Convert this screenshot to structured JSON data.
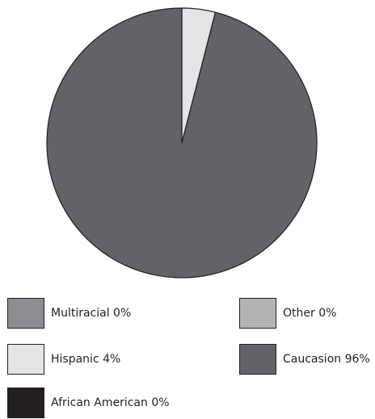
{
  "chart_data": {
    "type": "pie",
    "slices": [
      {
        "label": "Hispanic",
        "value": 4,
        "display": "Hispanic 4%",
        "color": "#e3e4e5"
      },
      {
        "label": "Caucasion",
        "value": 96,
        "display": "Caucasion 96%",
        "color": "#626366"
      },
      {
        "label": "Multiracial",
        "value": 0,
        "display": "Multiracial 0%",
        "color": "#8c8d90"
      },
      {
        "label": "Other",
        "value": 0,
        "display": "Other 0%",
        "color": "#b2b3b5"
      },
      {
        "label": "African American",
        "value": 0,
        "display": "African American 0%",
        "color": "#231f20"
      }
    ],
    "legend": {
      "placement": "bottom",
      "entries": [
        {
          "label": "Multiracial 0%",
          "color": "#8c8d90"
        },
        {
          "label": "Other 0%",
          "color": "#b2b3b5"
        },
        {
          "label": "Hispanic 4%",
          "color": "#e3e4e5"
        },
        {
          "label": "Caucasion 96%",
          "color": "#626366"
        },
        {
          "label": "African American 0%",
          "color": "#231f20"
        }
      ]
    }
  }
}
